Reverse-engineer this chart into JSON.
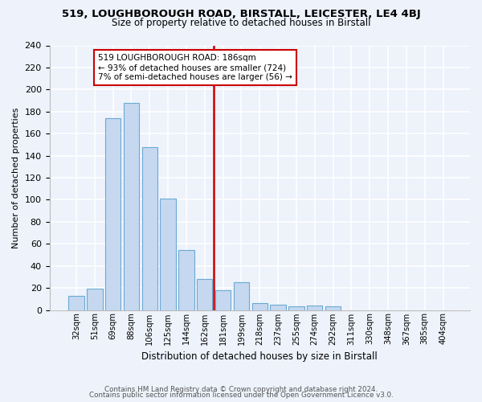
{
  "title1": "519, LOUGHBOROUGH ROAD, BIRSTALL, LEICESTER, LE4 4BJ",
  "title2": "Size of property relative to detached houses in Birstall",
  "xlabel": "Distribution of detached houses by size in Birstall",
  "ylabel": "Number of detached properties",
  "bar_color": "#c5d8f0",
  "bar_edge_color": "#6aaad4",
  "background_color": "#edf2fb",
  "grid_color": "#ffffff",
  "categories": [
    "32sqm",
    "51sqm",
    "69sqm",
    "88sqm",
    "106sqm",
    "125sqm",
    "144sqm",
    "162sqm",
    "181sqm",
    "199sqm",
    "218sqm",
    "237sqm",
    "255sqm",
    "274sqm",
    "292sqm",
    "311sqm",
    "330sqm",
    "348sqm",
    "367sqm",
    "385sqm",
    "404sqm"
  ],
  "values": [
    13,
    19,
    174,
    188,
    148,
    101,
    54,
    28,
    18,
    25,
    6,
    5,
    3,
    4,
    3,
    0,
    0,
    0,
    0,
    0,
    0
  ],
  "vline_x_index": 8,
  "vline_color": "#cc0000",
  "annotation_line1": "519 LOUGHBOROUGH ROAD: 186sqm",
  "annotation_line2": "← 93% of detached houses are smaller (724)",
  "annotation_line3": "7% of semi-detached houses are larger (56) →",
  "annotation_box_color": "#ffffff",
  "annotation_box_edge": "#cc0000",
  "footer1": "Contains HM Land Registry data © Crown copyright and database right 2024.",
  "footer2": "Contains public sector information licensed under the Open Government Licence v3.0.",
  "ylim": [
    0,
    240
  ],
  "yticks": [
    0,
    20,
    40,
    60,
    80,
    100,
    120,
    140,
    160,
    180,
    200,
    220,
    240
  ]
}
